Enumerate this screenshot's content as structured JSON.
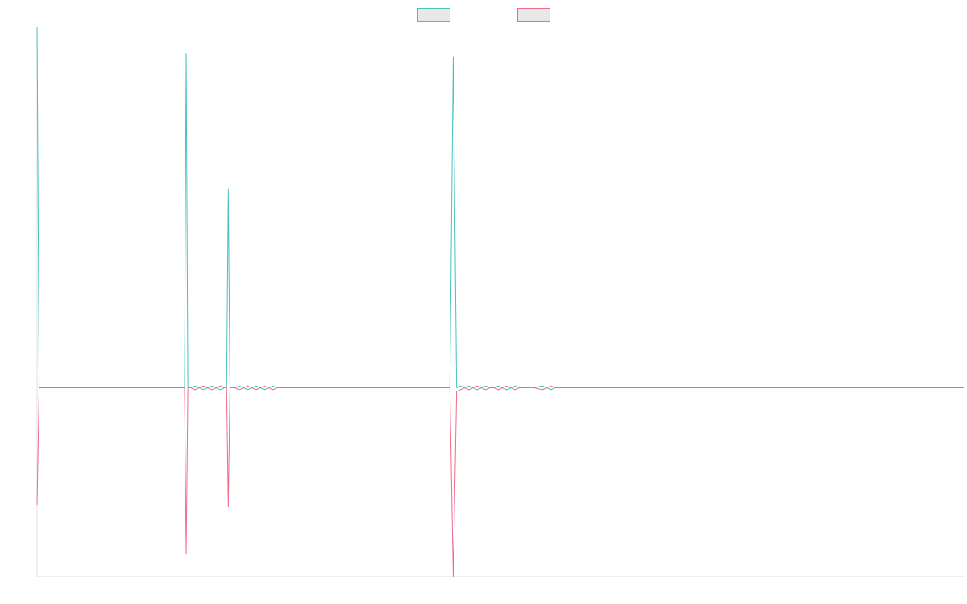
{
  "chart_data": {
    "type": "line",
    "title": "",
    "xlabel": "",
    "ylabel": "",
    "grid": false,
    "legend_position": "top-center",
    "ylim": [
      -1.0,
      1.9
    ],
    "xlim": [
      0,
      220
    ],
    "series": [
      {
        "name": "",
        "color": "#4bc0c0",
        "fill": "#e8e8e8",
        "points": [
          [
            0,
            1.91
          ],
          [
            0.5,
            0.0
          ],
          [
            35,
            0.0
          ],
          [
            35.4,
            1.77
          ],
          [
            35.8,
            0.0
          ],
          [
            36.5,
            0.0
          ],
          [
            37.5,
            0.01
          ],
          [
            38.5,
            0.0
          ],
          [
            39.5,
            -0.01
          ],
          [
            40.5,
            0.0
          ],
          [
            41.5,
            0.01
          ],
          [
            42.5,
            0.0
          ],
          [
            43.5,
            -0.01
          ],
          [
            44.5,
            0.0
          ],
          [
            45,
            0.0
          ],
          [
            45.4,
            1.05
          ],
          [
            45.8,
            0.0
          ],
          [
            47,
            0.0
          ],
          [
            48,
            0.01
          ],
          [
            49,
            0.0
          ],
          [
            50,
            -0.01
          ],
          [
            51,
            0.0
          ],
          [
            52,
            0.01
          ],
          [
            53,
            0.0
          ],
          [
            54,
            -0.01
          ],
          [
            55,
            0.0
          ],
          [
            56,
            0.01
          ],
          [
            57,
            0.0
          ],
          [
            97,
            0.0
          ],
          [
            98,
            0.0
          ],
          [
            98.8,
            1.75
          ],
          [
            99.6,
            0.0
          ],
          [
            100.5,
            0.01
          ],
          [
            101.5,
            0.0
          ],
          [
            102.5,
            0.01
          ],
          [
            103.5,
            0.0
          ],
          [
            104.5,
            -0.01
          ],
          [
            105.5,
            0.0
          ],
          [
            106.5,
            0.01
          ],
          [
            107.5,
            0.0
          ],
          [
            108.5,
            0.0
          ],
          [
            109.5,
            0.01
          ],
          [
            110.5,
            0.0
          ],
          [
            111.5,
            -0.01
          ],
          [
            112.5,
            0.0
          ],
          [
            113.5,
            0.01
          ],
          [
            114.5,
            0.0
          ],
          [
            118,
            0.0
          ],
          [
            120,
            0.01
          ],
          [
            121,
            0.0
          ],
          [
            122,
            -0.01
          ],
          [
            123,
            0.0
          ],
          [
            220,
            0.0
          ]
        ]
      },
      {
        "name": "",
        "color": "#f06b8a",
        "fill": "#e8e8e8",
        "points": [
          [
            0,
            -0.62
          ],
          [
            0.5,
            0.0
          ],
          [
            35,
            0.0
          ],
          [
            35.4,
            -0.88
          ],
          [
            35.8,
            0.0
          ],
          [
            36.5,
            0.0
          ],
          [
            37.5,
            -0.01
          ],
          [
            38.5,
            0.0
          ],
          [
            39.5,
            0.01
          ],
          [
            40.5,
            0.0
          ],
          [
            41.5,
            -0.01
          ],
          [
            42.5,
            0.0
          ],
          [
            43.5,
            0.01
          ],
          [
            44.5,
            0.0
          ],
          [
            45,
            0.0
          ],
          [
            45.4,
            -0.63
          ],
          [
            45.8,
            0.0
          ],
          [
            47,
            0.0
          ],
          [
            48,
            -0.01
          ],
          [
            49,
            0.0
          ],
          [
            50,
            0.01
          ],
          [
            51,
            0.0
          ],
          [
            52,
            -0.01
          ],
          [
            53,
            0.0
          ],
          [
            54,
            0.01
          ],
          [
            55,
            0.0
          ],
          [
            56,
            -0.01
          ],
          [
            57,
            0.0
          ],
          [
            97,
            0.0
          ],
          [
            98,
            0.0
          ],
          [
            98.8,
            -1.0
          ],
          [
            99.6,
            -0.02
          ],
          [
            100.5,
            -0.01
          ],
          [
            101.5,
            0.0
          ],
          [
            102.5,
            -0.01
          ],
          [
            103.5,
            0.0
          ],
          [
            104.5,
            0.01
          ],
          [
            105.5,
            0.0
          ],
          [
            106.5,
            -0.01
          ],
          [
            107.5,
            0.0
          ],
          [
            108.5,
            0.0
          ],
          [
            109.5,
            -0.01
          ],
          [
            110.5,
            0.0
          ],
          [
            111.5,
            0.01
          ],
          [
            112.5,
            0.0
          ],
          [
            113.5,
            -0.01
          ],
          [
            114.5,
            0.0
          ],
          [
            118,
            0.0
          ],
          [
            120,
            -0.01
          ],
          [
            121,
            0.0
          ],
          [
            122,
            0.01
          ],
          [
            123,
            0.0
          ],
          [
            220,
            0.0
          ]
        ]
      }
    ]
  }
}
